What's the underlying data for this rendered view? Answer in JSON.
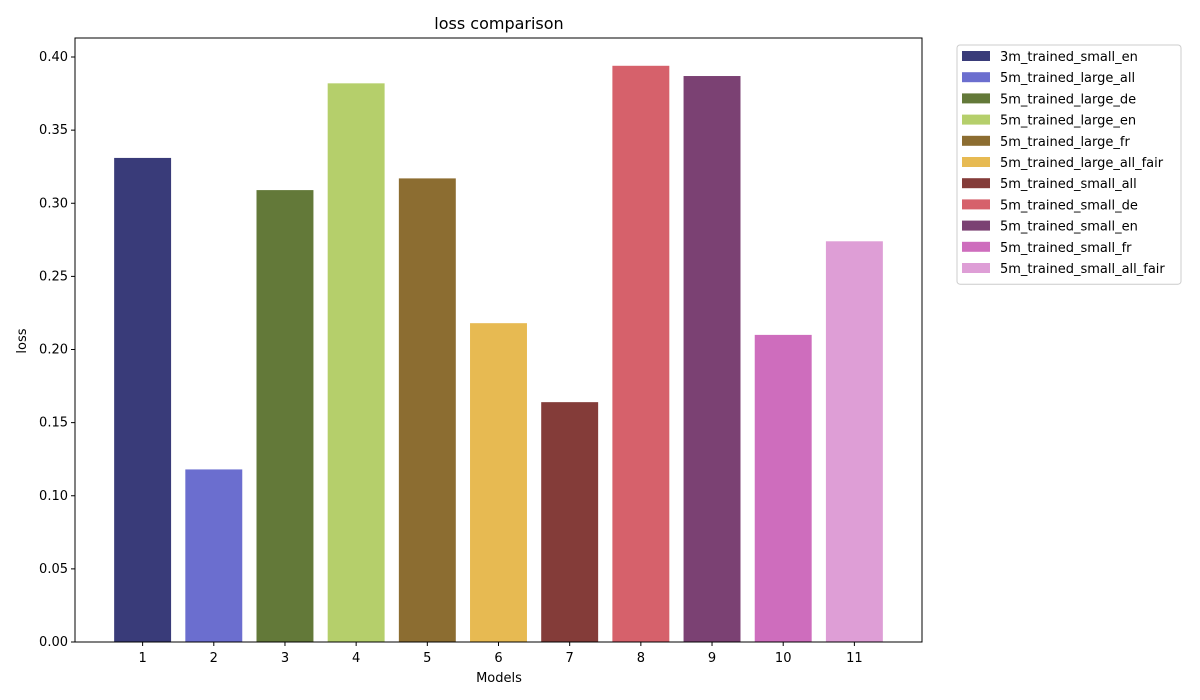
{
  "chart_data": {
    "type": "bar",
    "title": "loss comparison",
    "xlabel": "Models",
    "ylabel": "loss",
    "ylim": [
      0,
      0.413
    ],
    "xlim": [
      0.05,
      11.95
    ],
    "yticks": [
      "0.00",
      "0.05",
      "0.10",
      "0.15",
      "0.20",
      "0.25",
      "0.30",
      "0.35",
      "0.40"
    ],
    "grid": false,
    "legend_position": "outside-upper-right",
    "categories": [
      "1",
      "2",
      "3",
      "4",
      "5",
      "6",
      "7",
      "8",
      "9",
      "10",
      "11"
    ],
    "series": [
      {
        "name": "3m_trained_small_en",
        "value": 0.331,
        "color": "#393b79"
      },
      {
        "name": "5m_trained_large_all",
        "value": 0.118,
        "color": "#6b6ecf"
      },
      {
        "name": "5m_trained_large_de",
        "value": 0.309,
        "color": "#637939"
      },
      {
        "name": "5m_trained_large_en",
        "value": 0.382,
        "color": "#b5cf6b"
      },
      {
        "name": "5m_trained_large_fr",
        "value": 0.317,
        "color": "#8c6d31"
      },
      {
        "name": "5m_trained_large_all_fair",
        "value": 0.218,
        "color": "#e7ba52"
      },
      {
        "name": "5m_trained_small_all",
        "value": 0.164,
        "color": "#843c39"
      },
      {
        "name": "5m_trained_small_de",
        "value": 0.394,
        "color": "#d6616b"
      },
      {
        "name": "5m_trained_small_en",
        "value": 0.387,
        "color": "#7b4173"
      },
      {
        "name": "5m_trained_small_fr",
        "value": 0.21,
        "color": "#ce6dbd"
      },
      {
        "name": "5m_trained_small_all_fair",
        "value": 0.274,
        "color": "#de9ed6"
      }
    ]
  }
}
